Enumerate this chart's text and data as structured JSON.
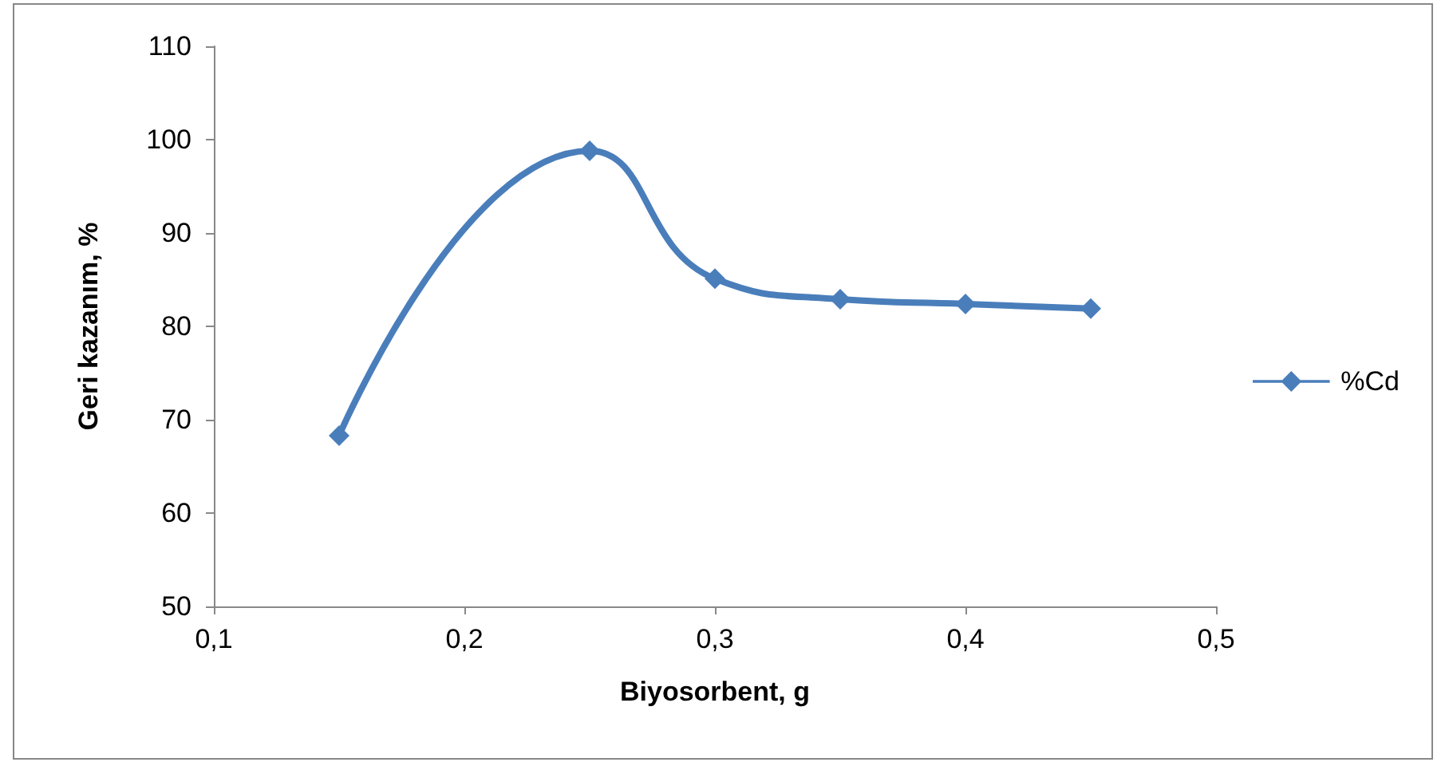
{
  "chart_data": {
    "type": "line",
    "xlabel": "Biyosorbent, g",
    "ylabel": "Geri kazanım, %",
    "x": [
      0.15,
      0.25,
      0.3,
      0.35,
      0.4,
      0.45
    ],
    "series": [
      {
        "name": "%Cd",
        "color": "#4a7ebb",
        "values": [
          68.3,
          98.8,
          85.1,
          82.9,
          82.4,
          81.9
        ]
      }
    ],
    "xlim": [
      0.1,
      0.5
    ],
    "xticks": [
      {
        "value": 0.1,
        "label": "0,1"
      },
      {
        "value": 0.2,
        "label": "0,2"
      },
      {
        "value": 0.3,
        "label": "0,3"
      },
      {
        "value": 0.4,
        "label": "0,4"
      },
      {
        "value": 0.5,
        "label": "0,5"
      }
    ],
    "ylim": [
      50,
      110
    ],
    "yticks": [
      50,
      60,
      70,
      80,
      90,
      100,
      110
    ],
    "grid": false,
    "legend": "right",
    "marker": "diamond",
    "line_style": "solid"
  }
}
